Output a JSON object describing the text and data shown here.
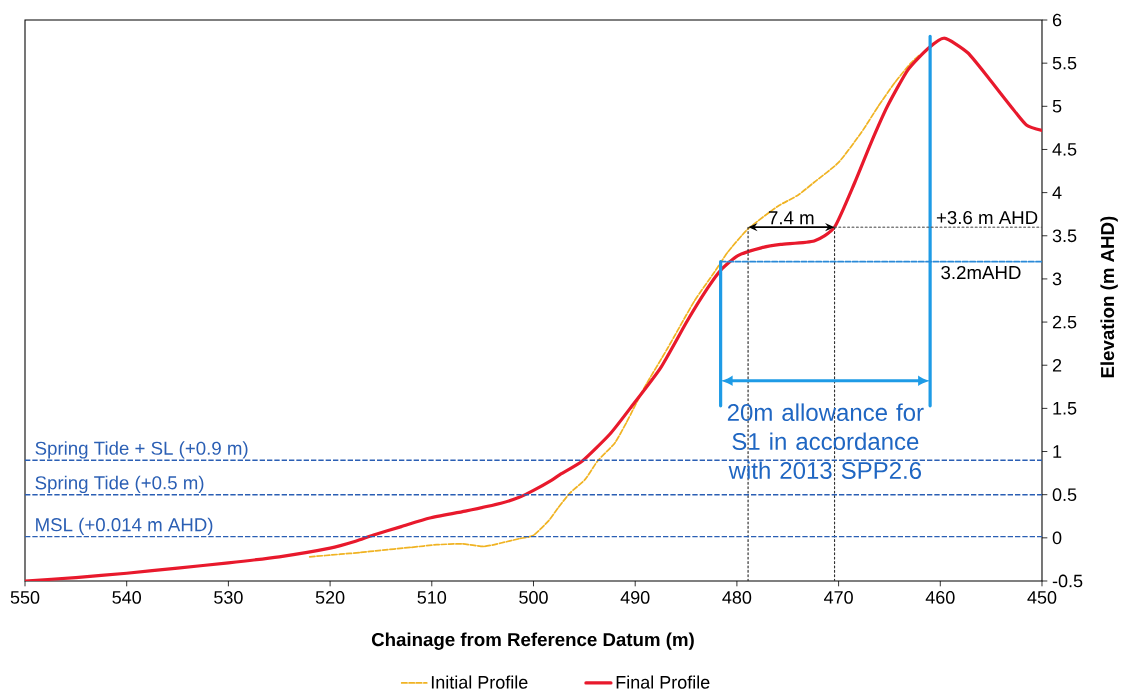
{
  "chart_data": {
    "type": "line",
    "xlabel": "Chainage from Reference Datum (m)",
    "ylabel": "Elevation (m AHD)",
    "xlim": [
      550,
      450
    ],
    "ylim": [
      -0.5,
      6
    ],
    "xticks": [
      550,
      540,
      530,
      520,
      510,
      500,
      490,
      480,
      470,
      460,
      450
    ],
    "yticks": [
      -0.5,
      0,
      0.5,
      1,
      1.5,
      2,
      2.5,
      3,
      3.5,
      4,
      4.5,
      5,
      5.5,
      6
    ],
    "series": [
      {
        "name": "Initial Profile",
        "color": "#f0b323",
        "line_style": "dashed",
        "x": [
          522,
          519,
          517,
          515.5,
          512,
          509.5,
          507,
          504.9,
          503.2,
          501.4,
          500,
          498.5,
          497.5,
          496.4,
          494.9,
          493.7,
          492,
          490.8,
          489.1,
          486.8,
          484.2,
          482.2,
          480.9,
          478.9,
          476,
          474,
          472.4,
          470,
          467.8,
          466.1,
          464.5,
          462.9,
          462
        ],
        "values": [
          -0.22,
          -0.19,
          -0.17,
          -0.15,
          -0.11,
          -0.08,
          -0.07,
          -0.1,
          -0.06,
          -0.01,
          0.03,
          0.2,
          0.36,
          0.52,
          0.68,
          0.89,
          1.1,
          1.35,
          1.74,
          2.2,
          2.74,
          3.08,
          3.31,
          3.58,
          3.84,
          3.97,
          4.12,
          4.35,
          4.69,
          5.0,
          5.27,
          5.5,
          5.6
        ]
      },
      {
        "name": "Final Profile",
        "color": "#e8192c",
        "line_style": "solid",
        "x": [
          550,
          545,
          540,
          535,
          530,
          525,
          520,
          517.5,
          515.8,
          513,
          510.2,
          506.7,
          503.2,
          501.4,
          500,
          498.2,
          497.3,
          495.2,
          492.5,
          490.5,
          487.5,
          484.9,
          482.9,
          481.6,
          479.9,
          477.6,
          475.7,
          472.4,
          470.4,
          468.4,
          466.8,
          465.2,
          463.2,
          461.2,
          459.6,
          457.3,
          455,
          453,
          451.5,
          450
        ],
        "values": [
          -0.5,
          -0.46,
          -0.41,
          -0.35,
          -0.29,
          -0.22,
          -0.12,
          -0.04,
          0.03,
          0.13,
          0.23,
          0.31,
          0.4,
          0.47,
          0.55,
          0.67,
          0.74,
          0.89,
          1.2,
          1.5,
          1.97,
          2.51,
          2.89,
          3.1,
          3.27,
          3.36,
          3.4,
          3.44,
          3.6,
          4.12,
          4.58,
          5.0,
          5.42,
          5.67,
          5.79,
          5.62,
          5.29,
          4.99,
          4.78,
          4.72
        ]
      },
      {
        "color": "#1e9be6",
        "line_style": "solid",
        "x": [
          481.6,
          481.6
        ],
        "values": [
          1.53,
          3.2
        ]
      },
      {
        "color": "#1e9be6",
        "line_style": "solid",
        "x": [
          461,
          461
        ],
        "values": [
          1.53,
          5.81
        ]
      },
      {
        "color": "#333333",
        "line_style": "dotted",
        "x": [
          478.9,
          478.9
        ],
        "values": [
          -0.5,
          3.6
        ]
      },
      {
        "color": "#333333",
        "line_style": "dotted",
        "x": [
          470.4,
          470.4
        ],
        "values": [
          -0.5,
          3.6
        ]
      },
      {
        "color": "#555555",
        "line_style": "dotted",
        "x": [
          470.4,
          450
        ],
        "values": [
          3.6,
          3.6
        ]
      },
      {
        "color": "#2a8ad8",
        "line_style": "dashed",
        "x": [
          481.6,
          450
        ],
        "values": [
          3.2,
          3.2
        ]
      }
    ],
    "ref_lines": [
      {
        "axis": "y",
        "value": 0.9,
        "label": "Spring Tide + SL (+0.9 m)",
        "color": "#2b5fb4",
        "line_style": "dashed"
      },
      {
        "axis": "y",
        "value": 0.5,
        "label": "Spring Tide (+0.5 m)",
        "color": "#2b5fb4",
        "line_style": "dashed"
      },
      {
        "axis": "y",
        "value": 0.014,
        "label": "MSL (+0.014 m AHD)",
        "color": "#2b5fb4",
        "line_style": "dashed"
      }
    ],
    "annotations": [
      "7.4 m",
      {
        "text": "+3.6 m AHD",
        "x": 455.4,
        "y": 3.6
      },
      {
        "text": "3.2mAHD",
        "x": 456,
        "y": 3.2
      },
      "20m allowance for S1 in accordance with 2013 SPP2.6"
    ],
    "legend": "bottom"
  }
}
